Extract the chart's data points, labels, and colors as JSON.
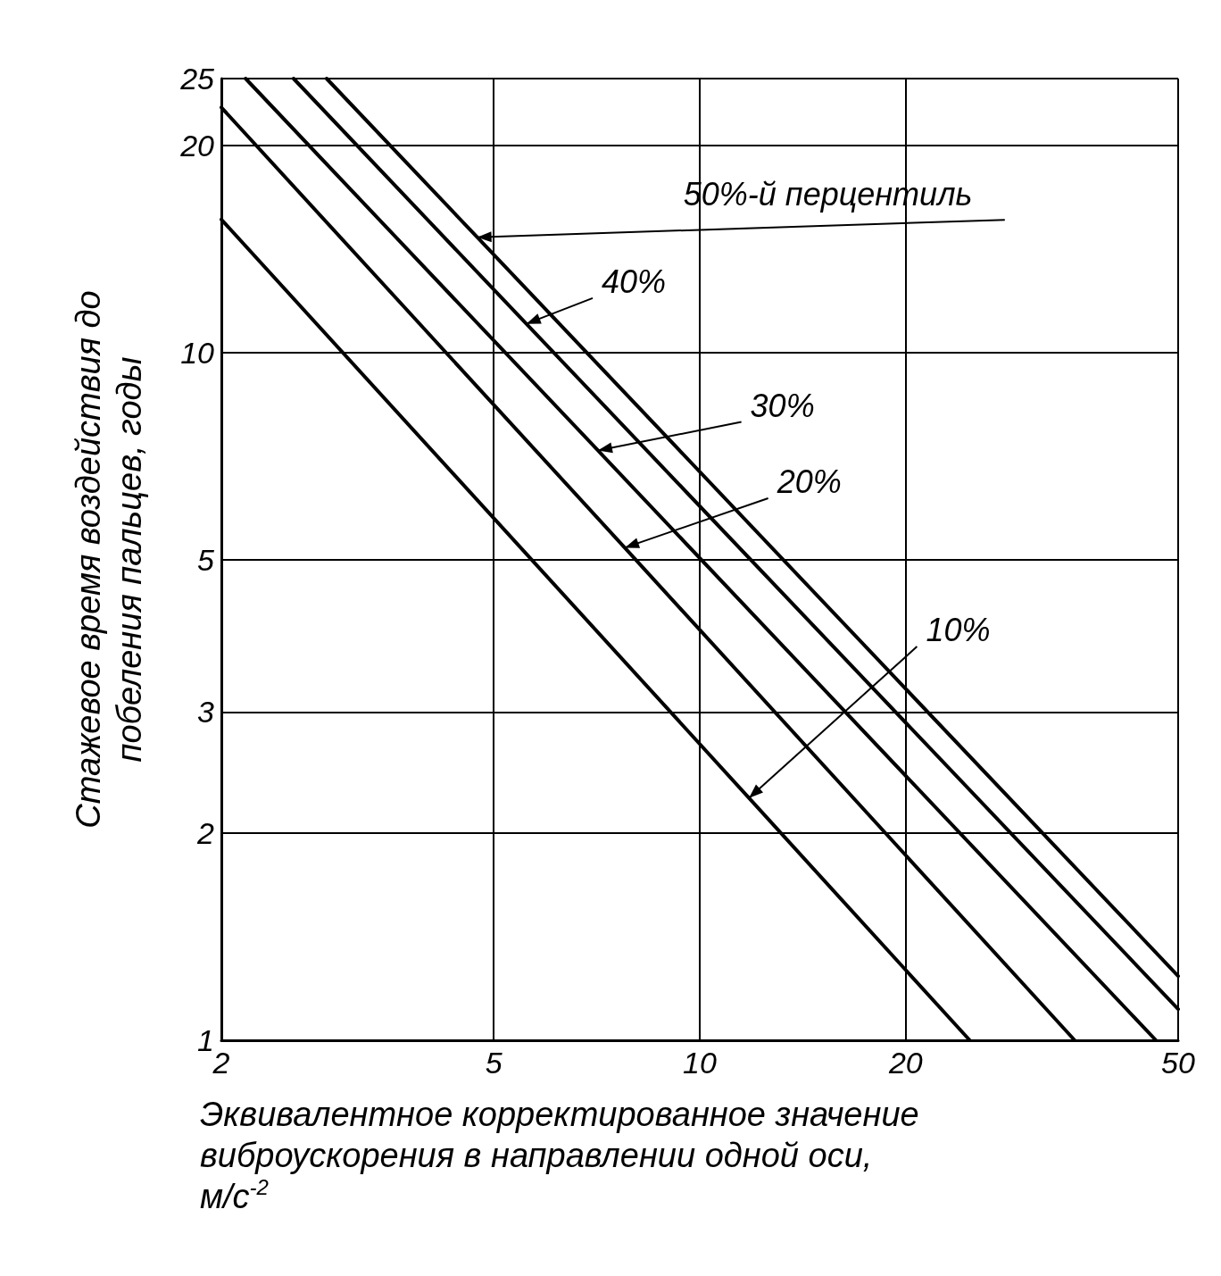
{
  "chart_data": {
    "type": "line",
    "xlabel": "Эквивалентное корректированное значение виброускорения в направлении одной оси, м/с$^{-2}$",
    "ylabel": "Стажевое время воздействия до побеления пальцев, годы",
    "log": "xy",
    "xlim": [
      2,
      50
    ],
    "ylim": [
      1,
      25
    ],
    "xticks": [
      2,
      5,
      10,
      20,
      50
    ],
    "yticks": [
      1,
      2,
      3,
      5,
      10,
      20,
      25
    ],
    "grid": true,
    "marker": "none",
    "line_style": "solid",
    "series": [
      {
        "color": "#000000",
        "x": [
          2,
          11.8,
          24.8
        ],
        "values": [
          15.6,
          2.25,
          1
        ]
      },
      {
        "color": "#000000",
        "x": [
          2,
          7.77,
          35.3
        ],
        "values": [
          22.7,
          5.2,
          1
        ]
      },
      {
        "color": "#000000",
        "x": [
          2.17,
          7.1,
          46.4
        ],
        "values": [
          25,
          7.2,
          1
        ]
      },
      {
        "color": "#000000",
        "x": [
          2.55,
          5.58,
          50
        ],
        "values": [
          25,
          11,
          1.11
        ]
      },
      {
        "color": "#000000",
        "x": [
          2.85,
          4.73,
          50
        ],
        "values": [
          25,
          14.7,
          1.24
        ]
      }
    ],
    "annotations": [
      {
        "text": "50%-й перцентиль",
        "x": 4.73,
        "y": 14.7
      },
      {
        "text": "40%",
        "x": 5.58,
        "y": 11
      },
      {
        "text": "30%",
        "x": 7.1,
        "y": 7.2
      },
      {
        "text": "20%",
        "x": 7.77,
        "y": 5.2
      },
      {
        "text": "10%",
        "x": 11.8,
        "y": 2.25
      }
    ]
  }
}
